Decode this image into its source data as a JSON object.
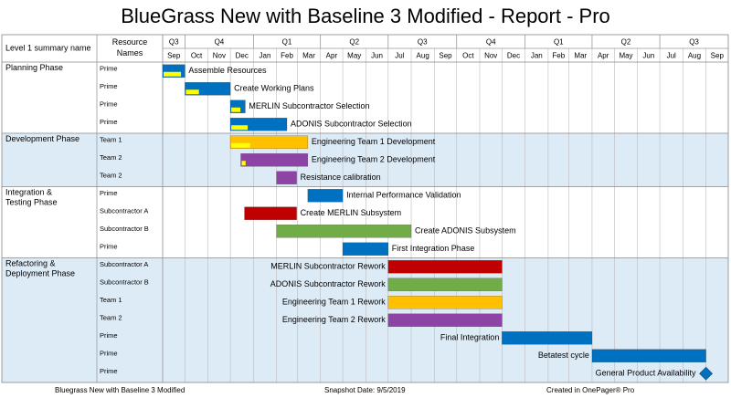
{
  "title": "BlueGrass New with Baseline 3 Modified - Report - Pro",
  "footer": {
    "left": "Bluegrass New with Baseline 3 Modified",
    "middle": "Snapshot Date: 9/5/2019",
    "right": "Created in OnePager® Pro"
  },
  "colors": {
    "blue": "#0070C0",
    "yellow": "#FFC000",
    "purple": "#8E44A5",
    "red": "#C00000",
    "green": "#70AD47",
    "progress": "#FFFF00",
    "band": "#DDEBF7",
    "grid": "#BBBBBB"
  },
  "chart_data": {
    "type": "gantt",
    "headers": {
      "summary": "Level 1 summary name",
      "resource": "Resource Names"
    },
    "quarters": [
      {
        "label": "Q3",
        "start": "2016-09-01",
        "end": "2016-10-01"
      },
      {
        "label": "Q4",
        "start": "2016-10-01",
        "end": "2017-01-01"
      },
      {
        "label": "Q1",
        "start": "2017-01-01",
        "end": "2017-04-01"
      },
      {
        "label": "Q2",
        "start": "2017-04-01",
        "end": "2017-07-01"
      },
      {
        "label": "Q3",
        "start": "2017-07-01",
        "end": "2017-10-01"
      },
      {
        "label": "Q4",
        "start": "2017-10-01",
        "end": "2018-01-01"
      },
      {
        "label": "Q1",
        "start": "2018-01-01",
        "end": "2018-04-01"
      },
      {
        "label": "Q2",
        "start": "2018-04-01",
        "end": "2018-07-01"
      },
      {
        "label": "Q3",
        "start": "2018-07-01",
        "end": "2018-10-01"
      }
    ],
    "months": [
      {
        "label": "Sep",
        "start": "2016-09-01"
      },
      {
        "label": "Oct",
        "start": "2016-10-01"
      },
      {
        "label": "Nov",
        "start": "2016-11-01"
      },
      {
        "label": "Dec",
        "start": "2016-12-01"
      },
      {
        "label": "Jan",
        "start": "2017-01-01"
      },
      {
        "label": "Feb",
        "start": "2017-02-01"
      },
      {
        "label": "Mar",
        "start": "2017-03-01"
      },
      {
        "label": "Apr",
        "start": "2017-04-01"
      },
      {
        "label": "May",
        "start": "2017-05-01"
      },
      {
        "label": "Jun",
        "start": "2017-06-01"
      },
      {
        "label": "Jul",
        "start": "2017-07-01"
      },
      {
        "label": "Aug",
        "start": "2017-08-01"
      },
      {
        "label": "Sep",
        "start": "2017-09-01"
      },
      {
        "label": "Oct",
        "start": "2017-10-01"
      },
      {
        "label": "Nov",
        "start": "2017-11-01"
      },
      {
        "label": "Dec",
        "start": "2017-12-01"
      },
      {
        "label": "Jan",
        "start": "2018-01-01"
      },
      {
        "label": "Feb",
        "start": "2018-02-01"
      },
      {
        "label": "Mar",
        "start": "2018-03-01"
      },
      {
        "label": "Apr",
        "start": "2018-04-01"
      },
      {
        "label": "May",
        "start": "2018-05-01"
      },
      {
        "label": "Jun",
        "start": "2018-06-01"
      },
      {
        "label": "Jul",
        "start": "2018-07-01"
      },
      {
        "label": "Aug",
        "start": "2018-08-01"
      },
      {
        "label": "Sep",
        "start": "2018-09-01"
      }
    ],
    "timeline_end": "2018-10-01",
    "groups": [
      {
        "name": "Planning Phase",
        "shaded": false,
        "tasks": [
          {
            "resource": "Prime",
            "label": "Assemble Resources",
            "start": "2016-09-01",
            "end": "2016-10-01",
            "color": "blue",
            "progress": 0.85,
            "label_side": "right"
          },
          {
            "resource": "Prime",
            "label": "Create Working Plans",
            "start": "2016-10-01",
            "end": "2016-12-01",
            "color": "blue",
            "progress": 0.3,
            "label_side": "right"
          },
          {
            "resource": "Prime",
            "label": "MERLIN Subcontractor Selection",
            "start": "2016-12-01",
            "end": "2016-12-21",
            "color": "blue",
            "progress": 0.7,
            "label_side": "right"
          },
          {
            "resource": "Prime",
            "label": "ADONIS Subcontractor Selection",
            "start": "2016-12-01",
            "end": "2017-02-15",
            "color": "blue",
            "progress": 0.3,
            "label_side": "right"
          }
        ]
      },
      {
        "name": "Development Phase",
        "shaded": true,
        "tasks": [
          {
            "resource": "Team 1",
            "label": "Engineering Team 1 Development",
            "start": "2016-12-01",
            "end": "2017-03-15",
            "color": "yellow",
            "progress": 0.25,
            "label_side": "right"
          },
          {
            "resource": "Team 2",
            "label": "Engineering Team 2 Development",
            "start": "2016-12-15",
            "end": "2017-03-15",
            "color": "purple",
            "progress": 0.06,
            "label_side": "right"
          },
          {
            "resource": "Team 2",
            "label": "Resistance calibration",
            "start": "2017-02-01",
            "end": "2017-02-28",
            "color": "purple",
            "progress": 0,
            "label_side": "right"
          }
        ]
      },
      {
        "name": "Integration & Testing Phase",
        "shaded": false,
        "tasks": [
          {
            "resource": "Prime",
            "label": "Internal Performance Validation",
            "start": "2017-03-15",
            "end": "2017-05-01",
            "color": "blue",
            "progress": 0,
            "label_side": "right"
          },
          {
            "resource": "Subcontractor A",
            "label": "Create MERLIN Subsystem",
            "start": "2016-12-20",
            "end": "2017-02-28",
            "color": "red",
            "progress": 0,
            "label_side": "right"
          },
          {
            "resource": "Subcontractor B",
            "label": "Create ADONIS Subsystem",
            "start": "2017-02-01",
            "end": "2017-08-01",
            "color": "green",
            "progress": 0,
            "label_side": "right"
          },
          {
            "resource": "Prime",
            "label": "First Integration Phase",
            "start": "2017-05-01",
            "end": "2017-07-01",
            "color": "blue",
            "progress": 0,
            "label_side": "right"
          }
        ]
      },
      {
        "name": "Refactoring & Deployment Phase",
        "shaded": true,
        "tasks": [
          {
            "resource": "Subcontractor A",
            "label": "MERLIN Subcontractor Rework",
            "start": "2017-07-01",
            "end": "2017-12-01",
            "color": "red",
            "progress": 0,
            "label_side": "left"
          },
          {
            "resource": "Subcontractor B",
            "label": "ADONIS Subcontractor Rework",
            "start": "2017-07-01",
            "end": "2017-12-01",
            "color": "green",
            "progress": 0,
            "label_side": "left"
          },
          {
            "resource": "Team 1",
            "label": "Engineering Team 1 Rework",
            "start": "2017-07-01",
            "end": "2017-12-01",
            "color": "yellow",
            "progress": 0,
            "label_side": "left"
          },
          {
            "resource": "Team 2",
            "label": "Engineering Team 2 Rework",
            "start": "2017-07-01",
            "end": "2017-12-01",
            "color": "purple",
            "progress": 0,
            "label_side": "left"
          },
          {
            "resource": "Prime",
            "label": "Final Integration",
            "start": "2017-12-01",
            "end": "2018-04-01",
            "color": "blue",
            "progress": 0,
            "label_side": "left"
          },
          {
            "resource": "Prime",
            "label": "Betatest cycle",
            "start": "2018-04-01",
            "end": "2018-09-01",
            "color": "blue",
            "progress": 0,
            "label_side": "left"
          },
          {
            "resource": "Prime",
            "label": "General Product Availability",
            "date": "2018-09-01",
            "milestone": true,
            "color": "blue",
            "label_side": "left"
          }
        ]
      }
    ]
  }
}
